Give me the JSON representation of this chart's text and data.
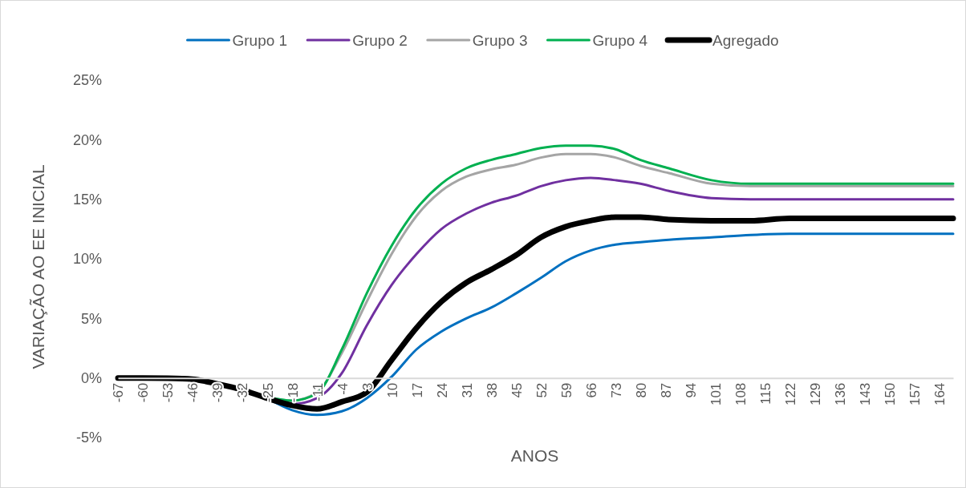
{
  "chart_data": {
    "type": "line",
    "xlabel": "ANOS",
    "ylabel": "VARIAÇÃO AO EE INICIAL",
    "legend": "top",
    "x": [
      -67,
      -60,
      -53,
      -46,
      -39,
      -32,
      -25,
      -18,
      -11,
      -4,
      3,
      10,
      17,
      24,
      31,
      38,
      45,
      52,
      59,
      66,
      73,
      80,
      88,
      100,
      111,
      122,
      134,
      150,
      168
    ],
    "xlim": [
      -67,
      168
    ],
    "xticks": [
      -67,
      -60,
      -53,
      -46,
      -39,
      -32,
      -25,
      -18,
      -11,
      -4,
      3,
      10,
      17,
      24,
      31,
      38,
      45,
      52,
      59,
      66,
      73,
      80,
      87,
      94,
      101,
      108,
      115,
      122,
      129,
      136,
      143,
      150,
      157,
      164
    ],
    "ylim": [
      -5,
      25
    ],
    "yticks": [
      {
        "value": -5,
        "label": "-5%"
      },
      {
        "value": 0,
        "label": "0%"
      },
      {
        "value": 5,
        "label": "5%"
      },
      {
        "value": 10,
        "label": "10%"
      },
      {
        "value": 15,
        "label": "15%"
      },
      {
        "value": 20,
        "label": "20%"
      },
      {
        "value": 25,
        "label": "25%"
      }
    ],
    "series": [
      {
        "name": "Grupo 1",
        "color": "#0070c0",
        "values": [
          null,
          null,
          null,
          null,
          null,
          null,
          -1.7,
          -2.7,
          -3.1,
          -2.8,
          -1.7,
          0.1,
          2.4,
          3.9,
          5.0,
          5.9,
          7.1,
          8.4,
          9.8,
          10.7,
          11.2,
          11.4,
          11.6,
          11.8,
          12.0,
          12.1,
          12.1,
          12.1,
          12.1
        ]
      },
      {
        "name": "Grupo 2",
        "color": "#7030a0",
        "values": [
          null,
          null,
          null,
          null,
          null,
          null,
          -1.7,
          -2.2,
          -1.7,
          0.4,
          4.4,
          7.8,
          10.4,
          12.5,
          13.8,
          14.7,
          15.3,
          16.1,
          16.6,
          16.8,
          16.6,
          16.3,
          15.7,
          15.1,
          15.0,
          15.0,
          15.0,
          15.0,
          15.0
        ]
      },
      {
        "name": "Grupo 3",
        "color": "#a5a5a5",
        "values": [
          null,
          null,
          null,
          null,
          null,
          null,
          -1.6,
          -1.9,
          -1.2,
          2.1,
          6.4,
          10.4,
          13.6,
          15.7,
          16.9,
          17.5,
          17.9,
          18.5,
          18.8,
          18.8,
          18.5,
          17.8,
          17.2,
          16.3,
          16.1,
          16.1,
          16.1,
          16.1,
          16.1
        ]
      },
      {
        "name": "Grupo 4",
        "color": "#00b050",
        "values": [
          null,
          null,
          null,
          null,
          null,
          null,
          -1.6,
          -1.9,
          -1.3,
          2.4,
          7.1,
          11.1,
          14.2,
          16.3,
          17.6,
          18.3,
          18.8,
          19.3,
          19.5,
          19.5,
          19.2,
          18.3,
          17.6,
          16.6,
          16.3,
          16.3,
          16.3,
          16.3,
          16.3
        ]
      },
      {
        "name": "Agregado",
        "color": "#000000",
        "values": [
          0,
          0,
          -0.02,
          -0.1,
          -0.5,
          -1.0,
          -1.7,
          -2.3,
          -2.6,
          -2.0,
          -1.2,
          1.5,
          4.2,
          6.4,
          8.0,
          9.1,
          10.3,
          11.8,
          12.7,
          13.2,
          13.5,
          13.5,
          13.3,
          13.2,
          13.2,
          13.4,
          13.4,
          13.4,
          13.4
        ]
      }
    ]
  }
}
